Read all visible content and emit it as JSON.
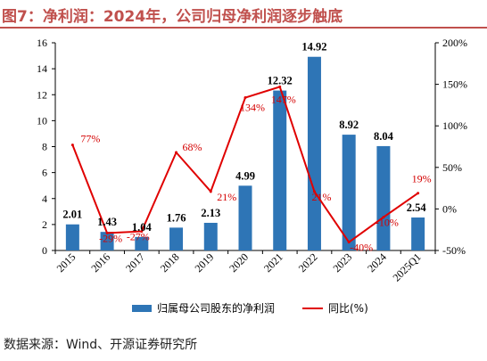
{
  "header": {
    "title": "图7：净利润：2024年，公司归母净利润逐步触底"
  },
  "footer": {
    "source": "数据来源：Wind、开源证券研究所"
  },
  "chart_data": {
    "type": "bar",
    "categories": [
      "2015",
      "2016",
      "2017",
      "2018",
      "2019",
      "2020",
      "2021",
      "2022",
      "2023",
      "2024",
      "2025Q1"
    ],
    "series": [
      {
        "name": "归属母公司股东的净利润",
        "type": "bar",
        "axis": "left",
        "values": [
          2.01,
          1.43,
          1.04,
          1.76,
          2.13,
          4.99,
          12.32,
          14.92,
          8.92,
          8.04,
          2.54
        ],
        "labels": [
          "2.01",
          "1.43",
          "1.04",
          "1.76",
          "2.13",
          "4.99",
          "12.32",
          "14.92",
          "8.92",
          "8.04",
          "2.54"
        ]
      },
      {
        "name": "同比(%)",
        "type": "line",
        "axis": "right",
        "values": [
          77,
          -29,
          -27,
          68,
          21,
          134,
          147,
          21,
          -40,
          -10,
          19
        ],
        "labels": [
          "77%",
          "-29%",
          "-27%",
          "68%",
          "21%",
          "134%",
          "147%",
          "21%",
          "-40%",
          "-10%",
          "19%"
        ]
      }
    ],
    "ylim_left": [
      0,
      16
    ],
    "yticks_left": [
      "0",
      "2",
      "4",
      "6",
      "8",
      "10",
      "12",
      "14",
      "16"
    ],
    "ylim_right": [
      -50,
      200
    ],
    "yticks_right": [
      "-50%",
      "0%",
      "50%",
      "100%",
      "150%",
      "200%"
    ],
    "grid": false,
    "legend_position": "bottom",
    "colors": {
      "bar": "#2e75b6",
      "line": "#e00000",
      "pct_label": "#d40000",
      "title": "#c0504d"
    }
  }
}
